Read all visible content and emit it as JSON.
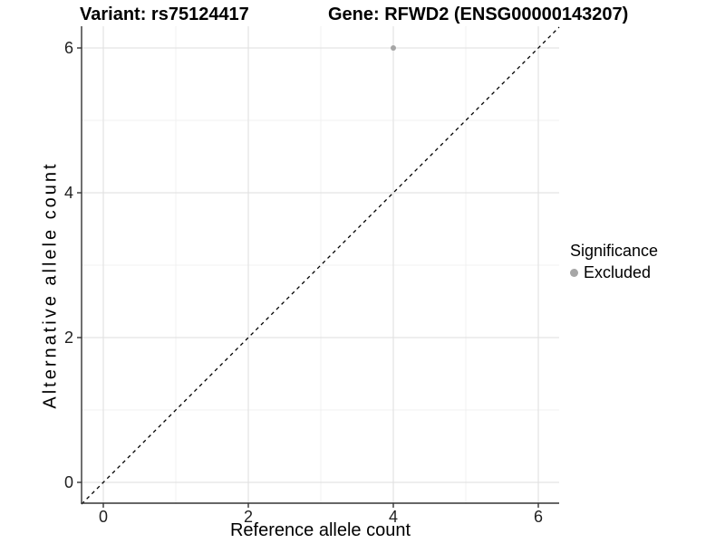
{
  "header": {
    "title_left": "Variant: rs75124417",
    "title_right": "Gene: RFWD2 (ENSG00000143207)"
  },
  "chart_data": {
    "type": "scatter",
    "title_left": "Variant: rs75124417",
    "title_right": "Gene: RFWD2 (ENSG00000143207)",
    "xlabel": "Reference allele count",
    "ylabel": "Alternative allele count",
    "xlim": [
      -0.3,
      6.3
    ],
    "ylim": [
      -0.3,
      6.3
    ],
    "x_ticks": [
      0,
      2,
      4,
      6
    ],
    "y_ticks": [
      0,
      2,
      4,
      6
    ],
    "x_minor_ticks": [
      1,
      3,
      5
    ],
    "y_minor_ticks": [
      1,
      3,
      5
    ],
    "grid": true,
    "series": [
      {
        "name": "Excluded",
        "color": "#a6a6a6",
        "points": [
          {
            "x": 4,
            "y": 6
          }
        ]
      }
    ],
    "reference_line": {
      "kind": "identity",
      "style": "dashed",
      "color": "#000000"
    },
    "legend": {
      "title": "Significance",
      "position": "right",
      "items": [
        {
          "label": "Excluded",
          "color": "#a6a6a6"
        }
      ]
    },
    "colors": {
      "background": "#ffffff",
      "grid_major": "#e3e3e3",
      "grid_minor": "#f0f0f0",
      "axis_line": "#333333",
      "tick_label": "#1f1f1f",
      "point": "#a6a6a6"
    }
  }
}
